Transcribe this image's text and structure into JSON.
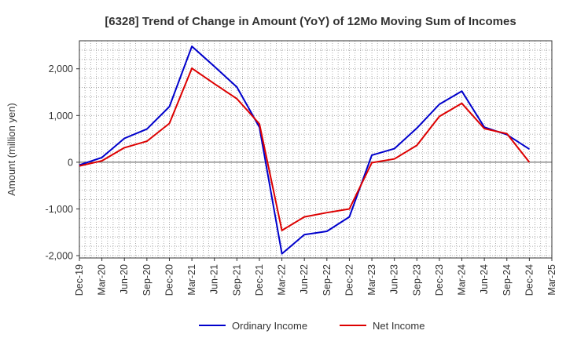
{
  "chart_data": {
    "type": "line",
    "title": "[6328]  Trend of Change in Amount (YoY) of 12Mo Moving Sum of Incomes",
    "xlabel": "",
    "ylabel": "Amount (million yen)",
    "categories": [
      "Dec-19",
      "Mar-20",
      "Jun-20",
      "Sep-20",
      "Dec-20",
      "Mar-21",
      "Jun-21",
      "Sep-21",
      "Dec-21",
      "Mar-22",
      "Jun-22",
      "Sep-22",
      "Dec-22",
      "Mar-23",
      "Jun-23",
      "Sep-23",
      "Dec-23",
      "Mar-24",
      "Jun-24",
      "Sep-24",
      "Dec-24",
      "Mar-25"
    ],
    "ylim": [
      -2050,
      2600
    ],
    "yticks": [
      -2000,
      -1000,
      0,
      1000,
      2000
    ],
    "ytick_labels": [
      "-2,000",
      "-1,000",
      "0",
      "1,000",
      "2,000"
    ],
    "grid": true,
    "legend_position": "bottom-center",
    "series": [
      {
        "name": "Ordinary Income",
        "color": "#0000cc",
        "values": [
          -60,
          100,
          510,
          710,
          1190,
          2480,
          2050,
          1610,
          750,
          -1960,
          -1550,
          -1480,
          -1170,
          150,
          290,
          730,
          1240,
          1520,
          750,
          590,
          280,
          null
        ]
      },
      {
        "name": "Net Income",
        "color": "#dd0000",
        "values": [
          -80,
          30,
          310,
          450,
          830,
          2010,
          1680,
          1360,
          820,
          -1460,
          -1170,
          -1080,
          -1000,
          -10,
          70,
          360,
          980,
          1260,
          720,
          610,
          0,
          null
        ]
      }
    ]
  }
}
